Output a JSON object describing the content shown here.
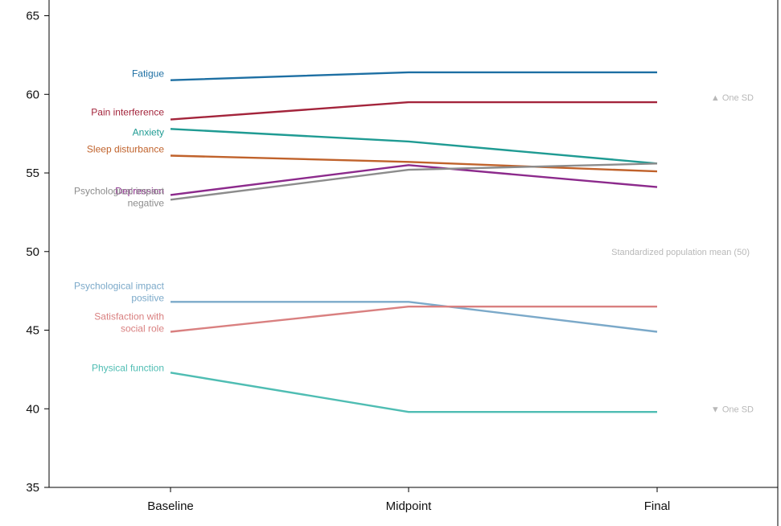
{
  "chart_data": {
    "type": "line",
    "title": "",
    "xlabel": "",
    "ylabel": "",
    "categories": [
      "Baseline",
      "Midpoint",
      "Final"
    ],
    "ylim": [
      35,
      66
    ],
    "yticks": [
      35,
      40,
      45,
      50,
      55,
      60,
      65
    ],
    "grid": false,
    "series": [
      {
        "name": "Fatigue",
        "label_lines": [
          "Fatigue"
        ],
        "color": "#1d6fa3",
        "values": [
          60.9,
          61.4,
          61.4
        ]
      },
      {
        "name": "Pain interference",
        "label_lines": [
          "Pain interference"
        ],
        "color": "#a3243b",
        "values": [
          58.4,
          59.5,
          59.5
        ]
      },
      {
        "name": "Anxiety",
        "label_lines": [
          "Anxiety"
        ],
        "color": "#1f9b93",
        "values": [
          57.8,
          57.0,
          55.6
        ]
      },
      {
        "name": "Sleep disturbance",
        "label_lines": [
          "Sleep disturbance"
        ],
        "color": "#c0622b",
        "values": [
          56.1,
          55.7,
          55.1
        ]
      },
      {
        "name": "Depression",
        "label_lines": [
          "Depression"
        ],
        "color": "#8c2a8c",
        "values": [
          53.6,
          55.5,
          54.1
        ]
      },
      {
        "name": "Psychological impact negative",
        "label_lines": [
          "Psychological impact",
          "negative"
        ],
        "color": "#8c8c8c",
        "values": [
          53.3,
          55.2,
          55.6
        ]
      },
      {
        "name": "Psychological impact positive",
        "label_lines": [
          "Psychological impact",
          "positive"
        ],
        "color": "#7ba9c9",
        "values": [
          46.8,
          46.8,
          44.9
        ]
      },
      {
        "name": "Satisfaction with social role",
        "label_lines": [
          "Satisfaction with",
          "social role"
        ],
        "color": "#d98080",
        "values": [
          44.9,
          46.5,
          46.5
        ]
      },
      {
        "name": "Physical function",
        "label_lines": [
          "Physical function"
        ],
        "color": "#4fbdb3",
        "values": [
          42.3,
          39.8,
          39.8
        ]
      }
    ],
    "annotations": [
      {
        "text": "▲ One SD",
        "y": 59.8
      },
      {
        "text": "Standardized population mean (50)",
        "y": 50
      },
      {
        "text": "▼ One SD",
        "y": 40
      }
    ]
  }
}
